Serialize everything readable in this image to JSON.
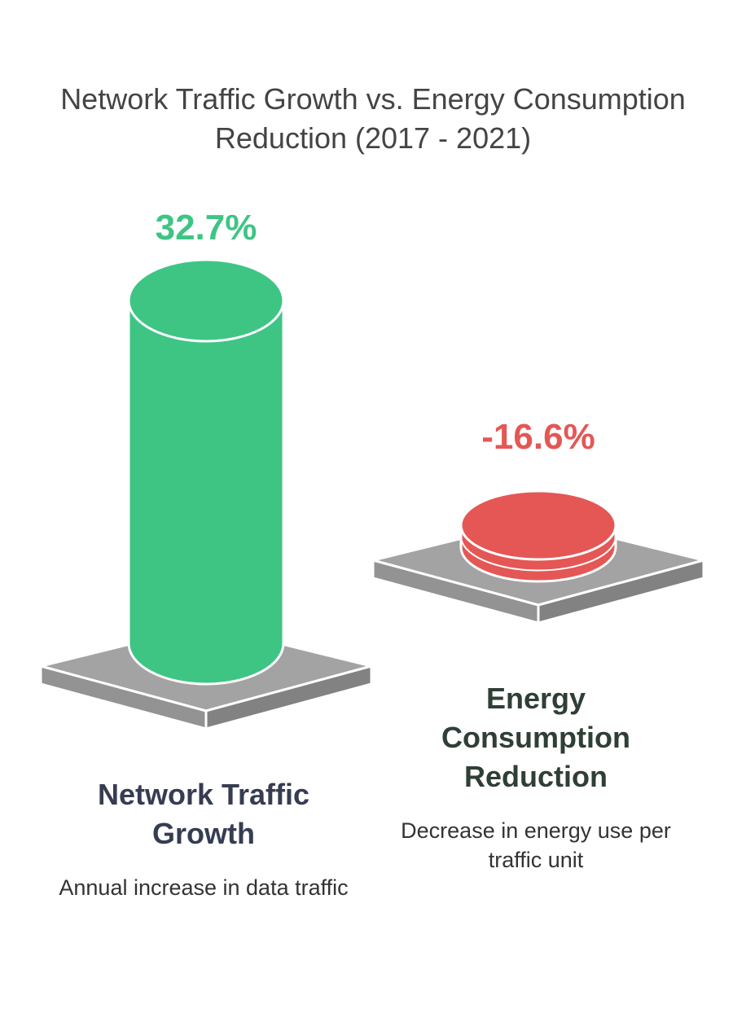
{
  "chart_data": {
    "type": "bar",
    "title": "Network Traffic Growth vs. Energy Consumption Reduction (2017 - 2021)",
    "categories": [
      "Network Traffic Growth",
      "Energy Consumption Reduction"
    ],
    "values": [
      32.7,
      -16.6
    ],
    "unit": "%",
    "value_labels": [
      "32.7%",
      "-16.6%"
    ],
    "descriptions": [
      "Annual increase in data traffic",
      "Decrease in energy use per traffic unit"
    ],
    "colors": [
      "#3ec584",
      "#e45755"
    ],
    "category_title_colors": [
      "#363d52",
      "#2f3f35"
    ],
    "pedestal_color": "#a3a3a3"
  }
}
